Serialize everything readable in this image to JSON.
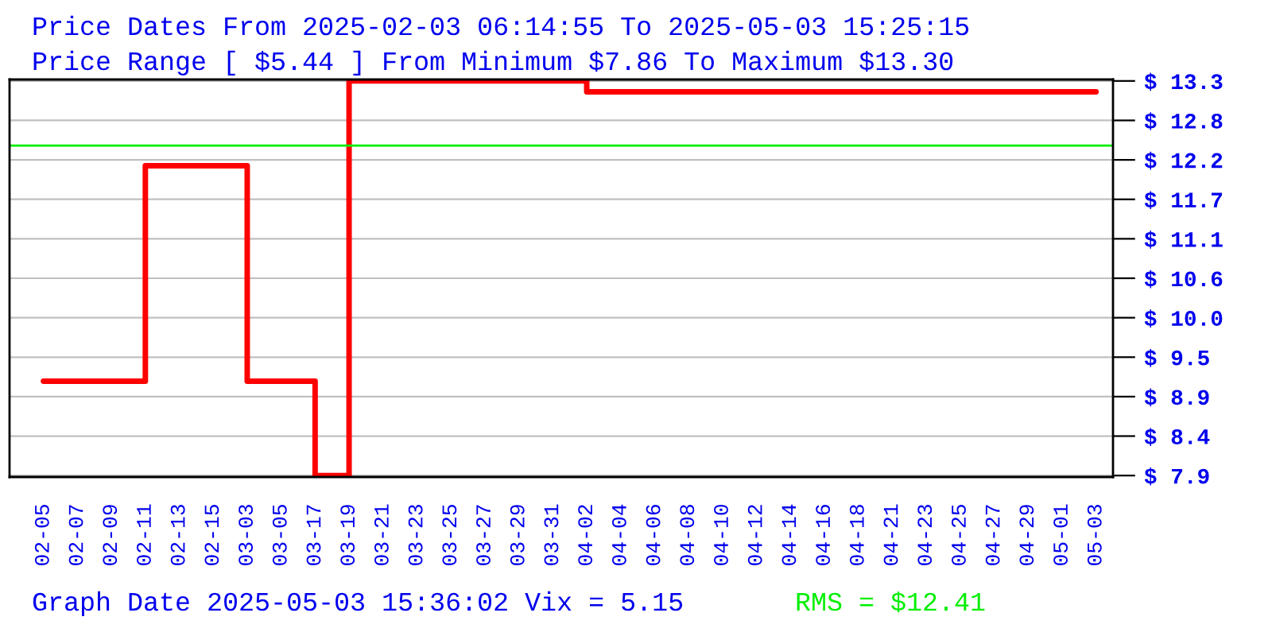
{
  "chart_data": {
    "type": "step",
    "title": "Price Dates From 2025-02-03 06:14:55 To 2025-05-03 15:25:15",
    "subtitle": "Price Range [ $5.44 ] From Minimum $7.86 To Maximum $13.30",
    "categories": [
      "02-05",
      "02-07",
      "02-09",
      "02-11",
      "02-13",
      "02-15",
      "03-03",
      "03-05",
      "03-17",
      "03-19",
      "03-21",
      "03-23",
      "03-25",
      "03-27",
      "03-29",
      "03-31",
      "04-02",
      "04-04",
      "04-06",
      "04-08",
      "04-10",
      "04-12",
      "04-14",
      "04-16",
      "04-18",
      "04-21",
      "04-23",
      "04-25",
      "04-27",
      "04-29",
      "05-01",
      "05-03"
    ],
    "series": [
      {
        "color": "#ff0000",
        "values": [
          9.16,
          9.16,
          9.16,
          12.13,
          12.13,
          12.13,
          9.16,
          9.16,
          7.86,
          13.3,
          13.3,
          13.3,
          13.3,
          13.3,
          13.3,
          13.3,
          13.15,
          13.15,
          13.15,
          13.15,
          13.15,
          13.15,
          13.15,
          13.15,
          13.15,
          13.15,
          13.15,
          13.15,
          13.15,
          13.15,
          13.15,
          13.15
        ]
      }
    ],
    "ylim": [
      7.84,
      13.32
    ],
    "yticks": [
      {
        "value": 7.86,
        "label": "$ 7.9"
      },
      {
        "value": 8.404,
        "label": "$ 8.4"
      },
      {
        "value": 8.948,
        "label": "$ 8.9"
      },
      {
        "value": 9.492,
        "label": "$ 9.5"
      },
      {
        "value": 10.036,
        "label": "$ 10.0"
      },
      {
        "value": 10.58,
        "label": "$ 10.6"
      },
      {
        "value": 11.124,
        "label": "$ 11.1"
      },
      {
        "value": 11.668,
        "label": "$ 11.7"
      },
      {
        "value": 12.212,
        "label": "$ 12.2"
      },
      {
        "value": 12.756,
        "label": "$ 12.8"
      },
      {
        "value": 13.3,
        "label": "$ 13.3"
      }
    ],
    "ref_lines": [
      {
        "axis": "y",
        "value": 12.41,
        "label": "RMS = $12.41",
        "color": "#00ee00"
      }
    ],
    "annotations": [
      "Graph Date 2025-05-03 15:36:02 Vix = 5.15"
    ],
    "grid": "y",
    "legend": false,
    "line_style": "solid",
    "marker": "none"
  }
}
